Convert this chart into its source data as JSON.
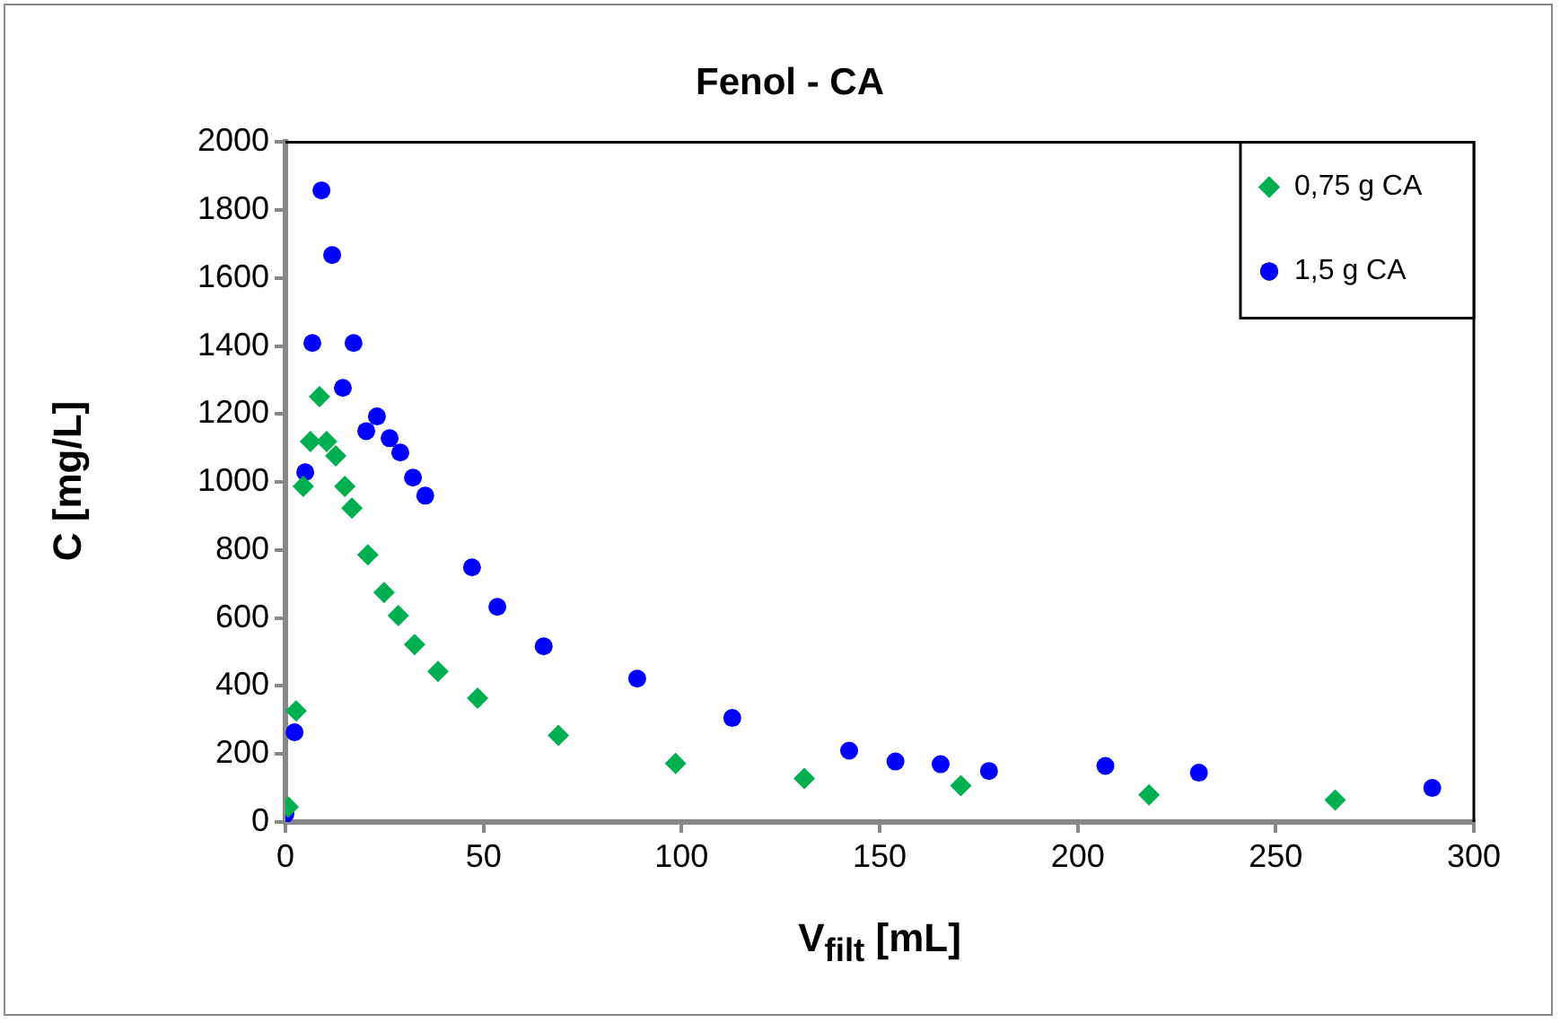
{
  "chart_data": {
    "type": "scatter",
    "title": "Fenol - CA",
    "xlabel": "V$_{filt}$ [mL]",
    "ylabel": "C [mg/L]",
    "xlim": [
      0,
      300
    ],
    "xticks": [
      0,
      50,
      100,
      150,
      200,
      250,
      300
    ],
    "ylim": [
      0,
      2000
    ],
    "yticks": [
      0,
      200,
      400,
      600,
      800,
      1000,
      1200,
      1400,
      1600,
      1800,
      2000
    ],
    "grid": false,
    "legend": "top right",
    "series": [
      {
        "name": "0,75 g CA",
        "color": "#00b050",
        "marker": "diamond",
        "x": [
          0.7,
          2.7,
          4.5,
          6.3,
          8.6,
          10.4,
          12.7,
          15,
          16.8,
          20.8,
          24.9,
          28.5,
          32.6,
          38.5,
          48.5,
          68.9,
          98.5,
          131,
          170.5,
          218,
          265
        ],
        "values": [
          44,
          327,
          987,
          1119,
          1251,
          1119,
          1077,
          987,
          923,
          786,
          675,
          607,
          522,
          443,
          364,
          255,
          172,
          128,
          107,
          80,
          65
        ]
      },
      {
        "name": "1,5 g CA",
        "color": "#0000ff",
        "marker": "circle",
        "x": [
          0,
          2.3,
          5,
          6.8,
          9.1,
          11.8,
          14.5,
          17.2,
          20.4,
          23.1,
          26.3,
          29,
          32.2,
          35.3,
          47.1,
          53.5,
          65.2,
          88.8,
          112.8,
          142.3,
          154,
          165.4,
          177.6,
          207,
          230.6,
          289.5
        ],
        "values": [
          24,
          264,
          1029,
          1409,
          1858,
          1668,
          1277,
          1409,
          1150,
          1193,
          1129,
          1087,
          1013,
          960,
          749,
          633,
          517,
          422,
          306,
          210,
          178,
          170,
          150,
          165,
          145,
          100
        ]
      }
    ]
  }
}
